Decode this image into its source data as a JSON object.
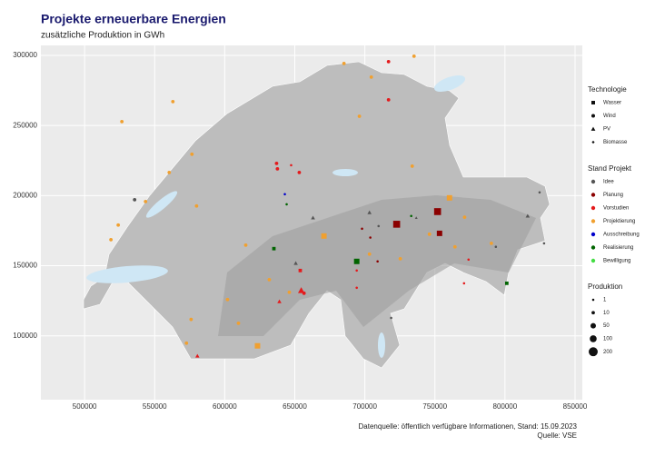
{
  "chart_data": {
    "type": "scatter",
    "title": "Projekte erneuerbare Energien",
    "subtitle": "zusätzliche Produktion in GWh",
    "xlim": [
      468800,
      855200
    ],
    "ylim": [
      54500,
      307100
    ],
    "xticks": [
      500000,
      550000,
      600000,
      650000,
      700000,
      750000,
      800000,
      850000
    ],
    "yticks": [
      100000,
      150000,
      200000,
      250000,
      300000
    ],
    "grid": true,
    "legend_title": "Stand Projekt",
    "shape_legend": {
      "title": "Technologie",
      "items": [
        "Wasser",
        "Wind",
        "PV",
        "Biomasse"
      ]
    },
    "size_legend": {
      "title": "Produktion",
      "values": [
        1,
        10,
        50,
        100,
        200
      ]
    },
    "series": [
      {
        "name": "Idee",
        "color": "#555555",
        "x": [
          535700,
          663000,
          703300,
          709800,
          736700,
          816200,
          793500,
          650700,
          718800,
          824700,
          827900
        ],
        "values": [
          197100,
          184200,
          188000,
          178300,
          184200,
          185500,
          163500,
          151800,
          112800,
          202300,
          166000
        ],
        "technologies": [
          "Wind",
          "PV",
          "PV",
          "Wind",
          "PV",
          "PV",
          "Wind",
          "PV",
          "Wind",
          "Wind",
          "Wind"
        ],
        "sizes": [
          10,
          10,
          10,
          1,
          1,
          10,
          1,
          10,
          1,
          1,
          1
        ]
      },
      {
        "name": "Planung",
        "color": "#8b0000",
        "x": [
          722700,
          751900,
          753300,
          698000,
          709100,
          703900
        ],
        "values": [
          179600,
          188600,
          173100,
          176400,
          153100,
          170100
        ],
        "technologies": [
          "Wasser",
          "Wasser",
          "Wasser",
          "Wind",
          "Wind",
          "Wind"
        ],
        "sizes": [
          100,
          100,
          50,
          1,
          1,
          1
        ]
      },
      {
        "name": "Vorstudien",
        "color": "#e41a1c",
        "x": [
          716900,
          716900,
          637000,
          637600,
          647400,
          653200,
          653900,
          654600,
          656600,
          639000,
          580500,
          694200,
          694200,
          774000,
          770800
        ],
        "values": [
          295500,
          268300,
          223000,
          219100,
          221700,
          216500,
          146600,
          132400,
          130400,
          124500,
          85700,
          146600,
          134300,
          154400,
          137500
        ],
        "technologies": [
          "Wind",
          "Wind",
          "Wind",
          "Wind",
          "Wind",
          "Wind",
          "Wasser",
          "PV",
          "Wind",
          "PV",
          "PV",
          "Wind",
          "Wind",
          "Wind",
          "Wind"
        ],
        "sizes": [
          10,
          10,
          10,
          10,
          1,
          10,
          10,
          50,
          10,
          10,
          10,
          1,
          1,
          1,
          1
        ]
      },
      {
        "name": "Projektierung",
        "color": "#f0a030",
        "x": [
          685100,
          704600,
          526600,
          563000,
          576600,
          560400,
          543500,
          524000,
          518800,
          579900,
          615000,
          670800,
          760400,
          771200,
          746100,
          764300,
          631800,
          646100,
          602000,
          609800,
          623400,
          576000,
          572700,
          703300,
          725300,
          790300,
          733800,
          696100,
          735100
        ],
        "values": [
          294200,
          284500,
          252800,
          267000,
          229500,
          216500,
          195800,
          179000,
          168600,
          192600,
          164700,
          171200,
          198400,
          184600,
          172500,
          163500,
          140100,
          131100,
          125900,
          109000,
          92900,
          111700,
          94800,
          158300,
          155000,
          166000,
          221000,
          256600,
          299400
        ],
        "technologies": [
          "Wind",
          "Wind",
          "Wind",
          "Wind",
          "Wind",
          "Wind",
          "Wind",
          "Wind",
          "Wind",
          "Wind",
          "Wind",
          "Wasser",
          "Wasser",
          "Wind",
          "Wind",
          "Wind",
          "Wind",
          "Wind",
          "Wind",
          "Wind",
          "Wasser",
          "Wind",
          "Wind",
          "Wind",
          "Wind",
          "Wind",
          "Wind",
          "Wind",
          "Wind"
        ],
        "sizes": [
          10,
          10,
          10,
          10,
          10,
          10,
          10,
          10,
          10,
          10,
          10,
          50,
          50,
          10,
          10,
          10,
          10,
          10,
          10,
          10,
          50,
          10,
          10,
          10,
          10,
          10,
          10,
          10,
          10
        ]
      },
      {
        "name": "Ausschreibung",
        "color": "#0000cc",
        "x": [
          642900
        ],
        "values": [
          201000
        ],
        "technologies": [
          "Wind"
        ],
        "sizes": [
          1
        ]
      },
      {
        "name": "Realisierung",
        "color": "#006400",
        "x": [
          694200,
          635100,
          644200,
          801300,
          733100
        ],
        "values": [
          153100,
          162200,
          193800,
          137500,
          185500
        ],
        "technologies": [
          "Wasser",
          "Wasser",
          "Wind",
          "Wasser",
          "Wind"
        ],
        "sizes": [
          50,
          10,
          1,
          10,
          1
        ]
      },
      {
        "name": "Bewilligung",
        "color": "#44dd44",
        "x": [],
        "values": [],
        "technologies": [],
        "sizes": []
      }
    ],
    "source_lines": [
      "Datenquelle: öffentlich verfügbare Informationen, Stand: 15.09.2023",
      "Quelle: VSE"
    ]
  }
}
